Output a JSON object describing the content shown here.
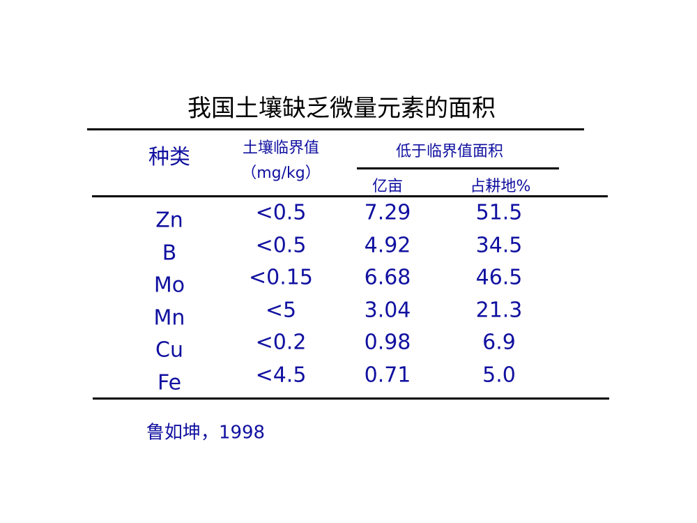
{
  "title": "我国土壤缺乏微量元素的面积",
  "table": {
    "header": {
      "kind": "种类",
      "threshold": "土壤临界值",
      "threshold_unit": "（mg/kg）",
      "below": "低于临界值面积",
      "area": "亿亩",
      "percent": "占耕地%"
    },
    "rows": [
      [
        "Zn",
        "<0.5",
        "7.29",
        "51.5"
      ],
      [
        "B",
        "<0.5",
        "4.92",
        "34.5"
      ],
      [
        "Mo",
        "<0.15",
        "6.68",
        "46.5"
      ],
      [
        "Mn",
        "<5",
        "3.04",
        "21.3"
      ],
      [
        "Cu",
        "<0.2",
        "0.98",
        "6.9"
      ],
      [
        "Fe",
        "<4.5",
        "0.71",
        "5.0"
      ]
    ]
  },
  "source": "鲁如坤，1998"
}
